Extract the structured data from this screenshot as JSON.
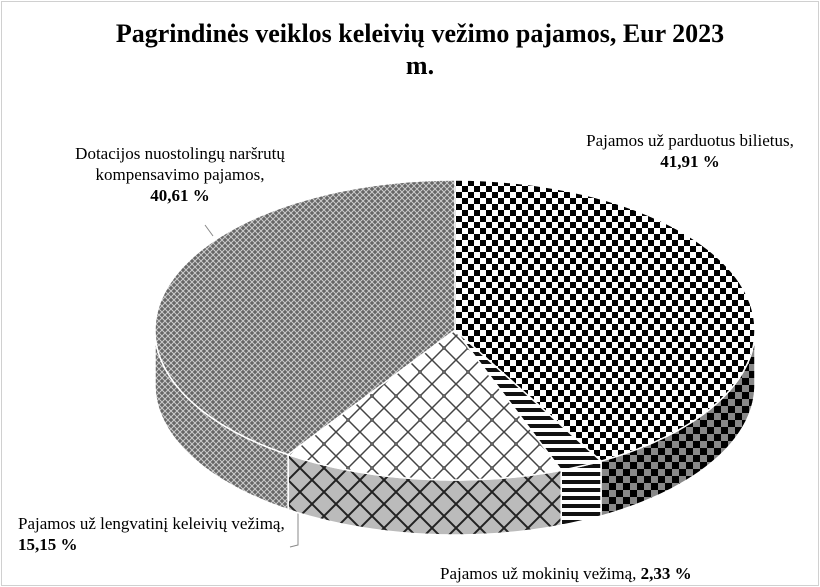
{
  "chart_data": {
    "type": "pie",
    "title": "Pagrindinės veiklos keleivių vežimo pajamos, Eur 2023 m.",
    "categories": [
      "Pajamos už parduotus bilietus,",
      "Pajamos už mokinių vežimą,",
      "Pajamos už lengvatinį keleivių vežimą,",
      "Dotacijos nuostolingų naršrutų kompensavimo pajamos,"
    ],
    "values": [
      41.91,
      2.33,
      15.15,
      40.61
    ],
    "value_labels": [
      "41,91 %",
      "2,33 %",
      "15,15 %",
      "40,61 %"
    ]
  }
}
